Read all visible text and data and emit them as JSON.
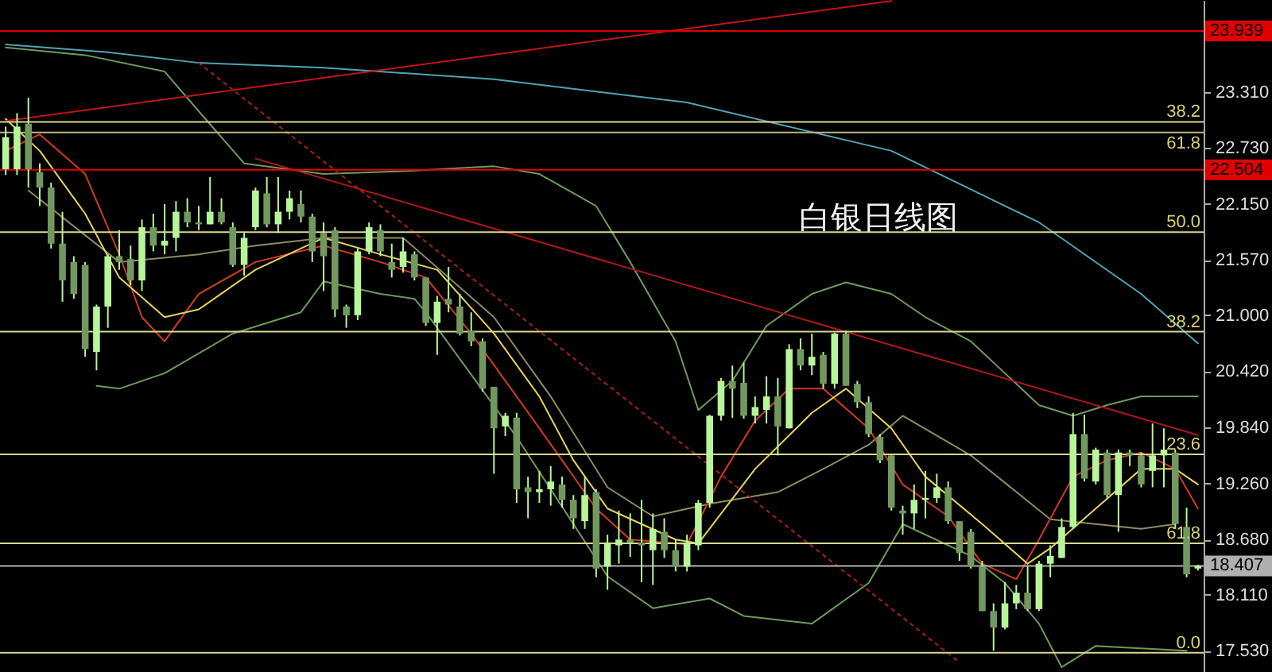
{
  "chart_data": {
    "type": "candlestick",
    "color": "#b8f59a",
    "colors": [
      "#b8f59a",
      "#b8f59a",
      "#72985f",
      "#72985f",
      "#72985f",
      "#72985f",
      "#72985f",
      "#72985f",
      "#b8f59a",
      "#b8f59a",
      "#72985f",
      "#72985f",
      "#b8f59a",
      "#72985f",
      "#b8f59a",
      "#b8f59a",
      "#72985f",
      "#72985f",
      "#b8f59a",
      "#72985f",
      "#72985f",
      "#b8f59a",
      "#b8f59a",
      "#72985f",
      "#b8f59a",
      "#b8f59a",
      "#72985f",
      "#72985f",
      "#72985f",
      "#72985f",
      "#72985f",
      "#b8f59a",
      "#b8f59a",
      "#72985f",
      "#72985f",
      "#b8f59a",
      "#72985f",
      "#72985f",
      "#b8f59a",
      "#72985f",
      "#72985f",
      "#72985f",
      "#72985f",
      "#72985f",
      "#b8f59a",
      "#72985f",
      "#72985f",
      "#b8f59a",
      "#b8f59a",
      "#72985f",
      "#72985f",
      "#b8f59a",
      "#72985f",
      "#b8f59a",
      "#b8f59a",
      "#72985f",
      "#72985f",
      "#b8f59a",
      "#72985f",
      "#72985f",
      "#b8f59a",
      "#b8f59a",
      "#b8f59a",
      "#b8f59a",
      "#72985f",
      "#72985f",
      "#b8f59a",
      "#b8f59a",
      "#72985f",
      "#b8f59a",
      "#72985f",
      "#b8f59a",
      "#72985f",
      "#b8f59a",
      "#72985f",
      "#72985f",
      "#72985f",
      "#72985f",
      "#72985f",
      "#72985f",
      "#b8f59a",
      "#b8f59a",
      "#b8f59a",
      "#72985f",
      "#72985f",
      "#72985f",
      "#72985f",
      "#72985f",
      "#b8f59a",
      "#b8f59a",
      "#72985f",
      "#b8f59a",
      "#b8f59a",
      "#b8f59a",
      "#b8f59a",
      "#72985f",
      "#b8f59a",
      "#72985f",
      "#b8f59a",
      "#72985f",
      "#72985f",
      "#b8f59a",
      "#b8f59a",
      "#72985f",
      "#72985f",
      "#b8f59a"
    ],
    "annotations": [
      "白银日线图",
      {
        "text": "38.2",
        "y": 23.0
      },
      {
        "text": "61.8",
        "y": 22.89
      },
      {
        "text": "50.0",
        "y": 21.86
      },
      {
        "text": "38.2",
        "y": 20.83
      },
      {
        "text": "23.6",
        "y": 19.56
      },
      {
        "text": "61.8",
        "y": 18.64
      },
      {
        "text": "0.0",
        "y": 17.51
      }
    ],
    "categories": [
      null,
      null,
      null,
      null,
      null,
      null,
      null,
      null,
      null,
      null,
      null,
      null,
      null,
      null,
      null,
      null,
      null,
      null,
      null,
      null,
      null,
      null,
      null,
      null,
      null,
      null,
      null,
      null,
      null,
      null,
      null,
      null,
      null,
      null,
      null,
      null,
      null,
      null,
      null,
      null,
      null,
      null,
      null,
      null,
      null,
      null,
      null,
      null,
      null,
      null,
      null,
      null,
      null,
      null,
      null,
      null,
      null,
      null,
      null,
      null,
      null,
      null,
      null,
      null,
      null,
      null,
      null,
      null,
      null,
      null,
      null,
      null,
      null,
      null,
      null,
      null,
      null,
      null,
      null,
      null,
      null,
      null,
      null,
      null,
      null,
      null,
      null,
      null,
      null,
      null,
      null,
      null,
      null,
      null,
      null,
      null,
      null,
      null,
      null,
      null,
      null,
      null,
      null,
      null,
      null,
      null
    ],
    "ohlc": [
      [
        22.51,
        22.95,
        22.45,
        22.84
      ],
      [
        22.51,
        23.09,
        22.45,
        22.95
      ],
      [
        22.98,
        23.25,
        22.32,
        22.51
      ],
      [
        22.48,
        22.57,
        22.13,
        22.32
      ],
      [
        22.32,
        22.37,
        21.69,
        21.74
      ],
      [
        21.74,
        22.07,
        21.14,
        21.36
      ],
      [
        21.55,
        21.61,
        21.17,
        21.22
      ],
      [
        21.52,
        21.55,
        20.57,
        20.65
      ],
      [
        20.62,
        21.11,
        20.43,
        21.09
      ],
      [
        21.09,
        21.63,
        20.87,
        21.61
      ],
      [
        21.61,
        21.88,
        21.47,
        21.55
      ],
      [
        21.58,
        21.72,
        21.31,
        21.36
      ],
      [
        21.36,
        21.99,
        21.25,
        21.91
      ],
      [
        21.91,
        22.05,
        21.66,
        21.72
      ],
      [
        21.72,
        22.15,
        21.63,
        21.77
      ],
      [
        21.8,
        22.18,
        21.66,
        22.07
      ],
      [
        22.07,
        22.21,
        21.91,
        21.96
      ],
      [
        21.96,
        22.13,
        21.88,
        21.94
      ],
      [
        21.94,
        22.43,
        21.94,
        22.07
      ],
      [
        22.07,
        22.21,
        21.94,
        21.96
      ],
      [
        21.91,
        21.96,
        21.5,
        21.52
      ],
      [
        21.52,
        21.85,
        21.41,
        21.8
      ],
      [
        21.91,
        22.32,
        21.88,
        22.29
      ],
      [
        22.26,
        22.43,
        21.91,
        21.94
      ],
      [
        21.94,
        22.43,
        21.85,
        22.07
      ],
      [
        22.07,
        22.29,
        21.99,
        22.21
      ],
      [
        22.15,
        22.29,
        21.96,
        22.02
      ],
      [
        22.02,
        22.05,
        21.55,
        21.66
      ],
      [
        21.85,
        21.96,
        21.25,
        21.61
      ],
      [
        21.88,
        21.91,
        20.98,
        21.06
      ],
      [
        21.09,
        21.11,
        20.87,
        21.0
      ],
      [
        21.0,
        21.69,
        20.95,
        21.66
      ],
      [
        21.66,
        21.96,
        21.63,
        21.91
      ],
      [
        21.88,
        21.94,
        21.61,
        21.66
      ],
      [
        21.55,
        21.74,
        21.39,
        21.47
      ],
      [
        21.5,
        21.8,
        21.44,
        21.66
      ],
      [
        21.63,
        21.66,
        21.36,
        21.39
      ],
      [
        21.39,
        21.39,
        20.89,
        20.92
      ],
      [
        20.92,
        21.2,
        20.59,
        21.14
      ],
      [
        21.17,
        21.5,
        21.03,
        21.11
      ],
      [
        21.09,
        21.22,
        20.79,
        20.81
      ],
      [
        20.84,
        21.03,
        20.68,
        20.73
      ],
      [
        20.73,
        20.76,
        20.21,
        20.24
      ],
      [
        20.26,
        20.26,
        19.36,
        19.83
      ],
      [
        19.85,
        19.99,
        19.75,
        19.96
      ],
      [
        19.94,
        19.99,
        19.06,
        19.2
      ],
      [
        19.22,
        19.33,
        18.9,
        19.17
      ],
      [
        19.17,
        19.39,
        19.06,
        19.2
      ],
      [
        19.2,
        19.44,
        19.03,
        19.28
      ],
      [
        19.25,
        19.33,
        19.01,
        19.09
      ],
      [
        19.09,
        19.14,
        18.79,
        18.9
      ],
      [
        18.87,
        19.33,
        18.79,
        19.14
      ],
      [
        19.17,
        19.2,
        18.29,
        18.38
      ],
      [
        18.4,
        18.73,
        18.16,
        18.65
      ],
      [
        18.62,
        18.98,
        18.43,
        18.68
      ],
      [
        18.68,
        18.95,
        18.5,
        18.65
      ],
      [
        18.65,
        19.09,
        18.24,
        18.62
      ],
      [
        18.57,
        18.95,
        18.21,
        18.79
      ],
      [
        18.76,
        18.9,
        18.49,
        18.57
      ],
      [
        18.57,
        18.68,
        18.35,
        18.4
      ],
      [
        18.4,
        18.73,
        18.35,
        18.65
      ],
      [
        18.62,
        19.09,
        18.57,
        19.06
      ],
      [
        19.06,
        19.97,
        19.01,
        19.96
      ],
      [
        19.96,
        20.35,
        19.91,
        20.32
      ],
      [
        20.32,
        20.48,
        19.94,
        20.24
      ],
      [
        20.3,
        20.51,
        19.93,
        19.96
      ],
      [
        19.96,
        20.16,
        19.88,
        20.05
      ],
      [
        20.02,
        20.37,
        19.88,
        20.16
      ],
      [
        20.16,
        20.35,
        19.55,
        19.85
      ],
      [
        19.83,
        20.7,
        19.83,
        20.65
      ],
      [
        20.65,
        20.76,
        20.43,
        20.48
      ],
      [
        20.48,
        20.81,
        20.38,
        20.57
      ],
      [
        20.59,
        20.62,
        20.24,
        20.29
      ],
      [
        20.29,
        20.82,
        20.24,
        20.81
      ],
      [
        20.81,
        20.84,
        20.27,
        20.27
      ],
      [
        20.29,
        20.32,
        20.04,
        20.1
      ],
      [
        20.1,
        20.16,
        19.74,
        19.77
      ],
      [
        19.74,
        19.77,
        19.47,
        19.5
      ],
      [
        19.55,
        19.55,
        18.98,
        19.01
      ],
      [
        18.98,
        19.03,
        18.73,
        18.95
      ],
      [
        18.95,
        19.25,
        18.79,
        19.09
      ],
      [
        19.09,
        19.39,
        18.9,
        19.11
      ],
      [
        19.11,
        19.36,
        19.06,
        19.22
      ],
      [
        19.22,
        19.28,
        18.84,
        18.87
      ],
      [
        18.87,
        18.87,
        18.46,
        18.54
      ],
      [
        18.76,
        18.79,
        18.38,
        18.4
      ],
      [
        18.4,
        18.46,
        17.94,
        17.94
      ],
      [
        17.94,
        18.02,
        17.53,
        17.77
      ],
      [
        17.77,
        18.24,
        17.75,
        18.02
      ],
      [
        18.02,
        18.21,
        17.96,
        18.13
      ],
      [
        18.13,
        18.4,
        17.94,
        17.96
      ],
      [
        17.96,
        18.46,
        17.94,
        18.43
      ],
      [
        18.43,
        18.62,
        18.29,
        18.51
      ],
      [
        18.49,
        18.9,
        18.49,
        18.81
      ],
      [
        18.81,
        19.99,
        18.79,
        19.77
      ],
      [
        19.77,
        19.97,
        19.28,
        19.31
      ],
      [
        19.28,
        19.63,
        19.25,
        19.61
      ],
      [
        19.58,
        19.61,
        19.11,
        19.14
      ],
      [
        19.14,
        19.61,
        18.76,
        19.58
      ],
      [
        19.58,
        19.61,
        19.44,
        19.55
      ],
      [
        19.55,
        19.58,
        19.22,
        19.25
      ],
      [
        19.39,
        19.88,
        19.22,
        19.55
      ],
      [
        19.55,
        19.83,
        19.22,
        19.61
      ],
      [
        19.58,
        19.61,
        18.79,
        18.84
      ],
      [
        18.81,
        19.01,
        18.29,
        18.32
      ],
      [
        18.38,
        18.42,
        18.36,
        18.41
      ]
    ],
    "series": [
      {
        "type": "line",
        "color": "#4fa3b5",
        "values": [
          23.8,
          null,
          null,
          null,
          null,
          null,
          null,
          null,
          null,
          23.72,
          null,
          null,
          null,
          null,
          null,
          null,
          null,
          23.61,
          null,
          null,
          null,
          null,
          null,
          null,
          null,
          null,
          null,
          null,
          23.56,
          null,
          null,
          null,
          null,
          null,
          null,
          null,
          null,
          null,
          null,
          null,
          null,
          null,
          null,
          23.44,
          null,
          null,
          null,
          null,
          null,
          null,
          null,
          null,
          null,
          null,
          null,
          null,
          null,
          null,
          null,
          null,
          23.2,
          null,
          null,
          null,
          null,
          null,
          null,
          null,
          null,
          null,
          null,
          null,
          null,
          null,
          null,
          null,
          null,
          null,
          22.7,
          null,
          null,
          null,
          null,
          null,
          null,
          null,
          null,
          null,
          null,
          null,
          null,
          21.96,
          null,
          null,
          null,
          null,
          null,
          null,
          null,
          null,
          21.22,
          null,
          null,
          null,
          null,
          20.71
        ]
      },
      {
        "type": "line",
        "color": "#6f9a5c",
        "values": [
          23.77,
          null,
          null,
          null,
          null,
          null,
          null,
          23.69,
          null,
          null,
          null,
          null,
          null,
          null,
          23.52,
          null,
          null,
          23.11,
          null,
          null,
          null,
          22.57,
          null,
          null,
          null,
          null,
          null,
          null,
          22.46,
          null,
          null,
          null,
          null,
          null,
          null,
          22.49,
          null,
          null,
          null,
          null,
          null,
          null,
          null,
          22.54,
          null,
          null,
          null,
          22.46,
          null,
          null,
          null,
          null,
          22.13,
          null,
          null,
          21.55,
          null,
          null,
          null,
          20.73,
          null,
          20.02,
          null,
          null,
          20.32,
          null,
          null,
          20.89,
          null,
          null,
          null,
          21.22,
          null,
          null,
          21.34,
          null,
          null,
          null,
          21.22,
          null,
          null,
          20.98,
          null,
          null,
          null,
          20.73,
          null,
          null,
          20.4,
          null,
          null,
          20.07,
          null,
          null,
          19.96,
          null,
          null,
          20.07,
          null,
          null,
          20.16,
          null,
          null,
          null,
          null,
          20.16
        ]
      },
      {
        "type": "line",
        "color": "#6f9a5c",
        "values": [
          null,
          null,
          null,
          null,
          null,
          null,
          null,
          null,
          20.27,
          null,
          20.24,
          null,
          null,
          null,
          20.4,
          null,
          null,
          null,
          null,
          null,
          20.81,
          null,
          null,
          null,
          null,
          null,
          21.03,
          null,
          21.35,
          null,
          null,
          null,
          null,
          21.22,
          null,
          null,
          21.17,
          21.03,
          null,
          null,
          null,
          null,
          null,
          null,
          null,
          19.74,
          null,
          null,
          null,
          null,
          null,
          null,
          null,
          18.3,
          null,
          null,
          null,
          17.97,
          null,
          null,
          null,
          null,
          18.07,
          null,
          null,
          17.89,
          null,
          null,
          null,
          null,
          null,
          17.81,
          null,
          null,
          null,
          null,
          18.23,
          null,
          null,
          18.84,
          null,
          null,
          null,
          null,
          null,
          18.51,
          null,
          null,
          18.23,
          null,
          null,
          17.81,
          null,
          17.36,
          null,
          null,
          17.58,
          null,
          null,
          null,
          null,
          null,
          null,
          null,
          17.53,
          null
        ]
      },
      {
        "type": "line",
        "color": "#8c8c62",
        "values": [
          null,
          null,
          22.29,
          null,
          null,
          null,
          null,
          null,
          null,
          null,
          21.55,
          null,
          null,
          null,
          null,
          null,
          null,
          21.63,
          null,
          null,
          null,
          null,
          21.72,
          null,
          null,
          null,
          null,
          null,
          21.8,
          null,
          null,
          null,
          null,
          null,
          null,
          21.8,
          null,
          null,
          null,
          null,
          null,
          null,
          null,
          20.98,
          null,
          null,
          null,
          null,
          20.16,
          null,
          null,
          null,
          null,
          19.22,
          null,
          null,
          null,
          18.92,
          null,
          null,
          null,
          null,
          19.05,
          null,
          null,
          null,
          null,
          null,
          19.17,
          null,
          null,
          null,
          19.41,
          null,
          null,
          null,
          19.66,
          null,
          null,
          19.96,
          null,
          null,
          null,
          null,
          null,
          19.55,
          null,
          null,
          null,
          null,
          null,
          null,
          18.89,
          null,
          null,
          null,
          null,
          null,
          null,
          null,
          18.79,
          null,
          null,
          18.84,
          null,
          null
        ]
      },
      {
        "type": "line",
        "color": "#d23a22",
        "values": [
          22.7,
          null,
          null,
          22.87,
          null,
          null,
          null,
          22.46,
          null,
          null,
          21.63,
          null,
          20.98,
          null,
          20.73,
          null,
          null,
          21.22,
          null,
          null,
          null,
          null,
          21.55,
          null,
          null,
          null,
          null,
          null,
          21.72,
          null,
          null,
          null,
          null,
          21.55,
          null,
          null,
          null,
          21.39,
          null,
          null,
          null,
          20.81,
          null,
          null,
          null,
          20.16,
          null,
          null,
          null,
          19.5,
          null,
          null,
          19.0,
          null,
          null,
          18.68,
          null,
          null,
          null,
          null,
          18.63,
          null,
          null,
          19.33,
          null,
          null,
          19.91,
          null,
          null,
          20.24,
          null,
          null,
          20.24,
          null,
          null,
          null,
          19.83,
          null,
          null,
          19.25,
          null,
          null,
          null,
          18.92,
          null,
          null,
          18.43,
          null,
          null,
          18.27,
          null,
          18.68,
          null,
          null,
          19.33,
          null,
          null,
          19.5,
          null,
          null,
          19.58,
          null,
          null,
          19.41,
          null,
          19.0
        ]
      },
      {
        "type": "line",
        "color": "#e6d25e",
        "values": [
          23.03,
          null,
          null,
          22.7,
          null,
          null,
          null,
          22.05,
          null,
          null,
          21.39,
          null,
          null,
          null,
          20.98,
          null,
          null,
          21.06,
          null,
          null,
          null,
          null,
          21.47,
          null,
          null,
          null,
          null,
          null,
          21.8,
          null,
          null,
          null,
          null,
          21.63,
          null,
          null,
          null,
          null,
          21.47,
          null,
          null,
          null,
          null,
          20.81,
          null,
          null,
          null,
          20.16,
          null,
          null,
          19.5,
          null,
          null,
          19.0,
          null,
          null,
          null,
          null,
          null,
          18.68,
          null,
          18.64,
          null,
          null,
          null,
          null,
          19.41,
          null,
          null,
          null,
          null,
          19.99,
          null,
          null,
          20.24,
          null,
          null,
          null,
          19.83,
          null,
          null,
          19.33,
          null,
          null,
          null,
          null,
          18.84,
          null,
          null,
          null,
          18.43,
          null,
          18.59,
          null,
          null,
          null,
          19.0,
          null,
          null,
          null,
          19.41,
          null,
          null,
          19.41,
          null,
          19.25
        ]
      },
      {
        "type": "line",
        "color": "#c41414",
        "values": [
          23.01,
          null,
          null,
          null,
          null,
          null,
          null,
          null,
          null,
          null,
          null,
          null,
          null,
          null,
          null,
          null,
          null,
          null,
          null,
          null,
          null,
          null,
          null,
          null,
          null,
          null,
          null,
          null,
          null,
          null,
          null,
          null,
          null,
          null,
          null,
          null,
          null,
          null,
          null,
          null,
          null,
          null,
          null,
          null,
          null,
          null,
          null,
          null,
          null,
          null,
          null,
          null,
          null,
          null,
          null,
          null,
          null,
          null,
          null,
          null,
          null,
          null,
          null,
          null,
          null,
          null,
          null,
          null,
          null,
          null,
          null,
          null,
          null,
          null,
          null,
          null,
          null,
          null,
          24.25,
          null,
          null,
          null,
          null,
          null,
          null,
          null,
          null,
          null,
          null,
          null,
          null,
          null,
          null,
          null,
          null,
          null,
          null,
          null,
          null,
          null,
          null,
          null,
          null,
          null,
          null,
          null
        ]
      },
      {
        "type": "line",
        "color": "#b01818",
        "values": [
          null,
          null,
          null,
          null,
          null,
          null,
          null,
          null,
          null,
          null,
          null,
          null,
          null,
          null,
          null,
          null,
          null,
          null,
          null,
          null,
          null,
          null,
          22.62,
          null,
          null,
          null,
          null,
          null,
          null,
          null,
          null,
          null,
          null,
          null,
          null,
          null,
          null,
          null,
          null,
          null,
          null,
          null,
          null,
          null,
          null,
          null,
          null,
          null,
          null,
          null,
          null,
          null,
          null,
          null,
          null,
          null,
          null,
          null,
          null,
          null,
          null,
          null,
          null,
          null,
          null,
          null,
          null,
          null,
          null,
          null,
          null,
          null,
          null,
          null,
          null,
          null,
          null,
          null,
          null,
          null,
          null,
          null,
          null,
          null,
          null,
          null,
          null,
          null,
          null,
          null,
          null,
          null,
          null,
          null,
          null,
          null,
          null,
          null,
          null,
          null,
          null,
          null,
          null,
          null,
          null,
          19.76
        ]
      },
      {
        "type": "line",
        "color": "#a82020",
        "line_style": "dotted",
        "values": [
          null,
          null,
          null,
          null,
          null,
          null,
          null,
          null,
          null,
          null,
          null,
          null,
          null,
          null,
          null,
          null,
          null,
          23.61,
          null,
          null,
          null,
          null,
          null,
          null,
          null,
          null,
          null,
          null,
          null,
          null,
          null,
          null,
          null,
          null,
          null,
          null,
          null,
          null,
          null,
          null,
          null,
          null,
          null,
          null,
          null,
          null,
          null,
          null,
          null,
          null,
          null,
          null,
          null,
          null,
          null,
          null,
          null,
          null,
          null,
          null,
          null,
          null,
          null,
          null,
          null,
          null,
          null,
          null,
          null,
          null,
          null,
          null,
          null,
          null,
          null,
          null,
          null,
          null,
          null,
          null,
          null,
          null,
          null,
          null,
          17.41,
          null,
          null,
          null,
          null,
          null,
          null,
          null,
          null,
          null,
          null,
          null,
          null,
          null,
          null,
          null,
          null,
          null,
          null,
          null,
          null,
          null
        ]
      }
    ],
    "ref_lines": [
      {
        "axis": "y",
        "value": 23.939,
        "label": "23.939",
        "color": "#e00000"
      },
      {
        "axis": "y",
        "value": 23.0,
        "color": "#d8d890"
      },
      {
        "axis": "y",
        "value": 22.89,
        "color": "#b8b880"
      },
      {
        "axis": "y",
        "value": 22.504,
        "label": "22.504",
        "color": "#e00000"
      },
      {
        "axis": "y",
        "value": 21.86,
        "color": "#d8d890"
      },
      {
        "axis": "y",
        "value": 20.83,
        "color": "#d8d890"
      },
      {
        "axis": "y",
        "value": 19.56,
        "color": "#d8d890"
      },
      {
        "axis": "y",
        "value": 18.64,
        "color": "#d8d890"
      },
      {
        "axis": "y",
        "value": 18.407,
        "label": "18.407",
        "color": "#b0b0b0"
      },
      {
        "axis": "y",
        "value": 17.51,
        "color": "#d8d890"
      }
    ],
    "ylim": [
      17.31,
      24.26
    ],
    "yticks": [
      {
        "value": 17.53,
        "label": "17.530"
      },
      {
        "value": 18.11,
        "label": "18.110"
      },
      {
        "value": 18.68,
        "label": "18.680"
      },
      {
        "value": 19.26,
        "label": "19.260"
      },
      {
        "value": 19.84,
        "label": "19.840"
      },
      {
        "value": 20.42,
        "label": "20.420"
      },
      {
        "value": 21,
        "label": "21.000"
      },
      {
        "value": 21.57,
        "label": "21.570"
      },
      {
        "value": 22.15,
        "label": "22.150"
      },
      {
        "value": 22.73,
        "label": "22.730"
      },
      {
        "value": 23.31,
        "label": "23.310"
      }
    ],
    "tick_labels": "y"
  }
}
